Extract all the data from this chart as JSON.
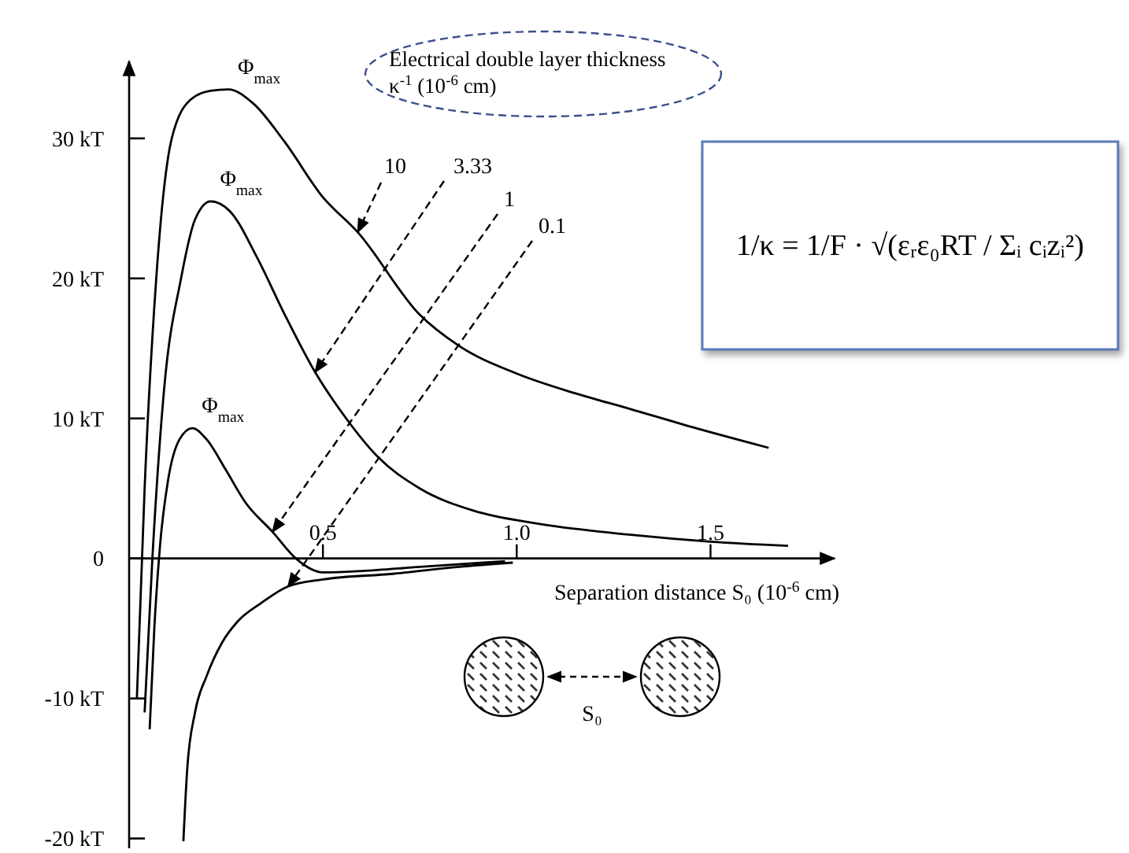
{
  "chart_data": {
    "type": "line",
    "xlabel": "Separation distance S₀ (10$^{-6}$ cm)",
    "legend_title": "Electrical double layer thickness κ$^{-1}$ (10$^{-6}$ cm)",
    "legend": false,
    "grid": false,
    "marker": "none",
    "line_style": "solid",
    "xlim": [
      0,
      1.82
    ],
    "ylim": [
      -20.7,
      35.5
    ],
    "xticks": [
      0.5,
      {
        "value": 1,
        "label": "1.0"
      },
      1.5
    ],
    "yticks": [
      {
        "value": -20,
        "label": "-20 kT"
      },
      {
        "value": -10,
        "label": "-10 kT"
      },
      0,
      {
        "value": 10,
        "label": "10 kT"
      },
      {
        "value": 20,
        "label": "20 kT"
      },
      {
        "value": 30,
        "label": "30 kT"
      }
    ],
    "series": [
      {
        "name": "10",
        "color": "#000000",
        "x": [
          0.02,
          0.04,
          0.07,
          0.11,
          0.16,
          0.21,
          0.256,
          0.32,
          0.4,
          0.5,
          0.59,
          0.75,
          0.85,
          1.0,
          1.15,
          1.29,
          1.45,
          1.65
        ],
        "values": [
          -10,
          5,
          20,
          30,
          32.8,
          33.4,
          33.5,
          32.5,
          29.8,
          25.8,
          23.3,
          17.4,
          15.2,
          13.2,
          11.8,
          10.7,
          9.4,
          7.9
        ]
      },
      {
        "name": "3.33",
        "color": "#000000",
        "x": [
          0.04,
          0.06,
          0.09,
          0.134,
          0.17,
          0.21,
          0.26,
          0.33,
          0.4,
          0.48,
          0.56,
          0.64,
          0.75,
          0.89,
          1.05,
          1.29,
          1.5,
          1.7
        ],
        "values": [
          -11,
          0,
          12,
          20,
          24.2,
          25.5,
          24.8,
          21.5,
          17.5,
          13.3,
          10,
          7.3,
          5,
          3.4,
          2.5,
          1.7,
          1.2,
          0.9
        ]
      },
      {
        "name": "1",
        "color": "#000000",
        "x": [
          0.053,
          0.065,
          0.08,
          0.1,
          0.13,
          0.163,
          0.2,
          0.25,
          0.3,
          0.37,
          0.43,
          0.5,
          0.6,
          0.75,
          0.97
        ],
        "values": [
          -12.2,
          -5,
          1,
          5.5,
          8.5,
          9.3,
          8.5,
          6.3,
          4,
          1.9,
          0,
          -1,
          -0.9,
          -0.6,
          -0.2
        ]
      },
      {
        "name": "0.1",
        "color": "#000000",
        "x": [
          0.14,
          0.15,
          0.17,
          0.2,
          0.24,
          0.28,
          0.34,
          0.41,
          0.5,
          0.68,
          0.85,
          0.99
        ],
        "values": [
          -20.2,
          -15,
          -11,
          -8.4,
          -6,
          -4.5,
          -3.2,
          -2,
          -1.5,
          -1.1,
          -0.6,
          -0.3
        ]
      }
    ],
    "annotations": [
      {
        "text": "Φ$_{max}$",
        "x": 0.256,
        "y": 33.5
      },
      {
        "text": "Φ$_{max}$",
        "x": 0.21,
        "y": 25.5
      },
      {
        "text": "Φ$_{max}$",
        "x": 0.163,
        "y": 9.3
      },
      "1/κ = 1/F · √(εᵣε₀RT / Σᵢ cᵢzᵢ²)",
      "S₀"
    ]
  }
}
